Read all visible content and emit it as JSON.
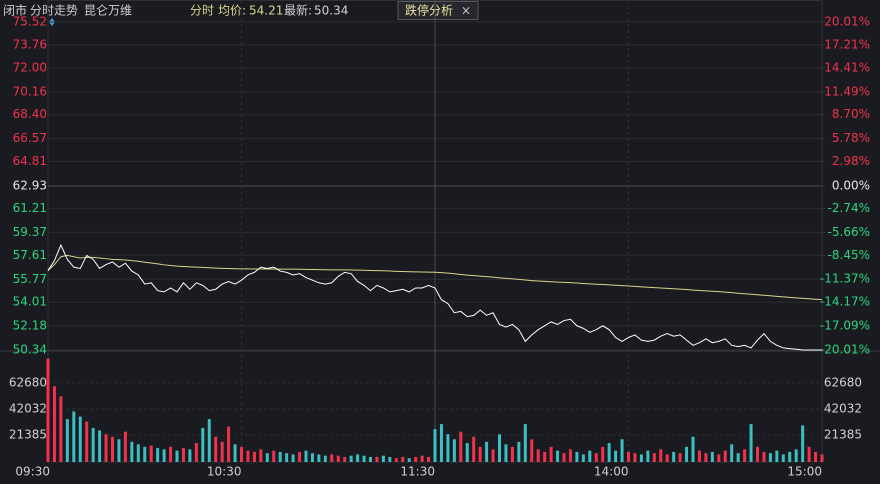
{
  "header": {
    "status": "闭市",
    "tab": "分时走势",
    "name": "昆仑万维",
    "mode": "分时",
    "avg_label": "均价:",
    "avg": "54.21",
    "last_label": "最新:",
    "last": "50.34",
    "analysis": "跌停分析",
    "close": "×"
  },
  "chart_data": {
    "type": "line",
    "x": [
      0,
      2,
      4,
      6,
      8,
      10,
      12,
      14,
      16,
      18,
      20,
      22,
      24,
      26,
      28,
      30,
      32,
      34,
      36,
      38,
      40,
      42,
      44,
      46,
      48,
      50,
      52,
      54,
      56,
      58,
      60,
      62,
      64,
      66,
      68,
      70,
      72,
      74,
      76,
      78,
      80,
      82,
      84,
      86,
      88,
      90,
      92,
      94,
      96,
      98,
      100,
      102,
      104,
      106,
      108,
      110,
      112,
      114,
      116,
      118,
      120,
      122,
      124,
      126,
      128,
      130,
      132,
      134,
      136,
      138,
      140,
      142,
      144,
      146,
      148,
      150,
      152,
      154,
      156,
      158,
      160,
      162,
      164,
      166,
      168,
      170,
      172,
      174,
      176,
      178,
      180,
      182,
      184,
      186,
      188,
      190,
      192,
      194,
      196,
      198,
      200,
      202,
      204,
      206,
      208,
      210,
      212,
      214,
      216,
      218,
      220,
      222,
      224,
      226,
      228,
      230,
      232,
      234,
      236,
      238,
      240
    ],
    "xlim": [
      0,
      240
    ],
    "xticks": [
      {
        "value": 0,
        "label": "09:30"
      },
      {
        "value": 60,
        "label": "10:30"
      },
      {
        "value": 120,
        "label": "11:30"
      },
      {
        "value": 180,
        "label": "14:00"
      },
      {
        "value": 240,
        "label": "15:00"
      }
    ],
    "ylim": [
      50.34,
      75.52
    ],
    "yticks": [
      75.52,
      73.76,
      {
        "value": 72,
        "label": "72.00"
      },
      70.16,
      {
        "value": 68.4,
        "label": "68.40"
      },
      66.57,
      64.81,
      62.93,
      61.21,
      59.37,
      57.61,
      55.77,
      54.01,
      52.18,
      50.34
    ],
    "y2lim": [
      -20.01,
      20.01
    ],
    "y2ticks": [
      {
        "value": 20.01,
        "label": "20.01%"
      },
      {
        "value": 17.21,
        "label": "17.21%"
      },
      {
        "value": 14.41,
        "label": "14.41%"
      },
      {
        "value": 11.49,
        "label": "11.49%"
      },
      {
        "value": 8.7,
        "label": "8.70%"
      },
      {
        "value": 5.78,
        "label": "5.78%"
      },
      {
        "value": 2.98,
        "label": "2.98%"
      },
      {
        "value": 0,
        "label": "0.00%"
      },
      {
        "value": -2.74,
        "label": "-2.74%"
      },
      {
        "value": -5.66,
        "label": "-5.66%"
      },
      {
        "value": -8.45,
        "label": "-8.45%"
      },
      {
        "value": -11.37,
        "label": "-11.37%"
      },
      {
        "value": -14.17,
        "label": "-14.17%"
      },
      {
        "value": -17.09,
        "label": "-17.09%"
      },
      {
        "value": -20.01,
        "label": "-20.01%"
      }
    ],
    "up_color": "#f0334b",
    "down_color": "#2bd57f",
    "flat_color": "#e6e6e6",
    "series": [
      {
        "color": "#ffffff",
        "values": [
          56.44,
          57.2,
          58.4,
          57.3,
          56.7,
          56.6,
          57.6,
          57.3,
          56.6,
          56.9,
          57.1,
          56.7,
          57.0,
          56.4,
          56.1,
          55.4,
          55.5,
          54.9,
          54.8,
          55.1,
          54.8,
          55.5,
          55.0,
          55.5,
          55.3,
          54.9,
          55.0,
          55.4,
          55.6,
          55.4,
          55.7,
          56.1,
          56.3,
          56.7,
          56.6,
          56.7,
          56.4,
          56.3,
          56.1,
          56.2,
          55.9,
          55.7,
          55.5,
          55.4,
          55.5,
          56.0,
          56.3,
          56.2,
          55.6,
          55.3,
          54.9,
          55.3,
          55.1,
          54.8,
          54.9,
          55.0,
          54.8,
          55.1,
          55.1,
          55.3,
          55.1,
          54.2,
          53.9,
          53.2,
          53.3,
          52.9,
          53.0,
          53.4,
          53.0,
          53.2,
          52.3,
          52.1,
          52.3,
          51.9,
          51.0,
          51.5,
          51.9,
          52.2,
          52.5,
          52.3,
          52.6,
          52.7,
          52.2,
          52.0,
          51.7,
          51.9,
          52.2,
          51.9,
          51.3,
          51.0,
          51.3,
          51.5,
          51.1,
          51.0,
          51.1,
          51.4,
          51.6,
          51.4,
          51.5,
          51.1,
          50.7,
          50.9,
          51.2,
          50.9,
          51.0,
          51.2,
          50.7,
          50.6,
          50.7,
          50.5,
          51.1,
          51.6,
          51.0,
          50.7,
          50.5,
          50.45,
          50.4,
          50.34,
          50.34,
          50.34,
          50.34
        ]
      },
      {
        "color": "#d9d48c",
        "values": [
          56.44,
          56.9,
          57.5,
          57.6,
          57.5,
          57.4,
          57.45,
          57.45,
          57.4,
          57.35,
          57.3,
          57.28,
          57.25,
          57.2,
          57.15,
          57.08,
          57.02,
          56.95,
          56.88,
          56.83,
          56.78,
          56.75,
          56.72,
          56.7,
          56.68,
          56.65,
          56.63,
          56.61,
          56.6,
          56.58,
          56.57,
          56.57,
          56.56,
          56.56,
          56.56,
          56.56,
          56.55,
          56.55,
          56.55,
          56.54,
          56.53,
          56.52,
          56.51,
          56.5,
          56.49,
          56.49,
          56.49,
          56.48,
          56.47,
          56.46,
          56.44,
          56.43,
          56.42,
          56.4,
          56.38,
          56.37,
          56.35,
          56.34,
          56.33,
          56.32,
          56.31,
          56.28,
          56.24,
          56.19,
          56.14,
          56.09,
          56.05,
          56.01,
          55.97,
          55.93,
          55.88,
          55.84,
          55.8,
          55.76,
          55.71,
          55.67,
          55.64,
          55.61,
          55.58,
          55.55,
          55.53,
          55.51,
          55.48,
          55.45,
          55.42,
          55.39,
          55.37,
          55.34,
          55.31,
          55.28,
          55.25,
          55.22,
          55.19,
          55.16,
          55.13,
          55.1,
          55.07,
          55.04,
          55.01,
          54.98,
          54.94,
          54.91,
          54.88,
          54.85,
          54.82,
          54.78,
          54.74,
          54.7,
          54.66,
          54.62,
          54.58,
          54.54,
          54.5,
          54.46,
          54.42,
          54.38,
          54.34,
          54.3,
          54.27,
          54.24,
          54.21
        ]
      }
    ],
    "volume": {
      "ylim": [
        0,
        87100
      ],
      "yticks": [
        62680,
        42032,
        21385
      ],
      "up_color": "#f0334b",
      "down_color": "#3bbfc4",
      "values": [
        82000,
        60000,
        52000,
        34000,
        40000,
        36000,
        32000,
        27000,
        25000,
        22000,
        20000,
        18000,
        24000,
        16000,
        14000,
        12000,
        13000,
        11000,
        10000,
        12000,
        9000,
        11000,
        10000,
        15000,
        27000,
        34000,
        20000,
        16000,
        28000,
        14000,
        12000,
        9000,
        8000,
        10000,
        7000,
        9000,
        8000,
        7000,
        6000,
        8000,
        9000,
        7000,
        6000,
        5000,
        6000,
        5000,
        4000,
        5000,
        6000,
        5000,
        4000,
        4000,
        5000,
        4000,
        3000,
        4000,
        3000,
        4000,
        5000,
        4000,
        26000,
        30000,
        22000,
        18000,
        24000,
        15000,
        20000,
        12000,
        16000,
        10000,
        22000,
        14000,
        12000,
        16000,
        30000,
        18000,
        10000,
        8000,
        12000,
        9000,
        7000,
        10000,
        8000,
        6000,
        9000,
        7000,
        12000,
        15000,
        9000,
        18000,
        8000,
        7000,
        6000,
        9000,
        7000,
        10000,
        6000,
        8000,
        7000,
        12000,
        20000,
        9000,
        7000,
        8000,
        6000,
        9000,
        14000,
        7000,
        10000,
        30000,
        12000,
        8000,
        7000,
        9000,
        6000,
        8000,
        10000,
        29000,
        12000,
        8000,
        6000
      ]
    }
  }
}
